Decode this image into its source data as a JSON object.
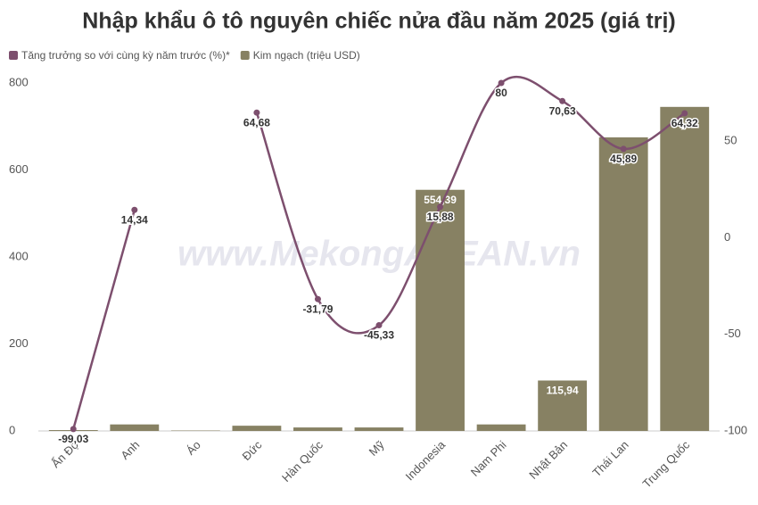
{
  "chart_data": {
    "type": "bar-line",
    "title": "Nhập khẩu ô tô nguyên chiếc nửa đầu năm 2025 (giá trị)",
    "watermark": "www.MekongASEAN.vn",
    "categories": [
      "Ấn Độ",
      "Anh",
      "Áo",
      "Đức",
      "Hàn Quốc",
      "Mỹ",
      "Indonesia",
      "Nam Phi",
      "Nhật Bản",
      "Thái Lan",
      "Trung Quốc"
    ],
    "series": [
      {
        "name": "Tăng trưởng so với cùng kỳ năm trước (%)*",
        "type": "line",
        "axis": "y2",
        "color": "#7d4f6e",
        "values": [
          -99.03,
          14.34,
          null,
          64.68,
          -31.79,
          -45.33,
          15.88,
          80,
          70.63,
          45.89,
          64.32
        ],
        "value_labels": [
          "-99,03",
          "14,34",
          null,
          "64,68",
          "-31,79",
          "-45,33",
          "15,88",
          "80",
          "70,63",
          "45,89",
          "64,32"
        ]
      },
      {
        "name": "Kim ngạch (triệu USD)",
        "type": "bar",
        "axis": "y",
        "color": "#878163",
        "values": [
          2,
          15,
          1,
          12,
          8,
          8,
          554.39,
          15,
          115.94,
          675,
          745
        ],
        "value_labels": [
          null,
          null,
          null,
          null,
          null,
          null,
          "554,39",
          null,
          "115,94",
          null,
          null
        ]
      }
    ],
    "ylim": [
      0,
      800
    ],
    "yticks": [
      0,
      200,
      400,
      600,
      800
    ],
    "y2lim": [
      -100,
      80
    ],
    "y2ticks": [
      -100,
      -50,
      0,
      50
    ],
    "grid": false,
    "legend": "top-left"
  }
}
